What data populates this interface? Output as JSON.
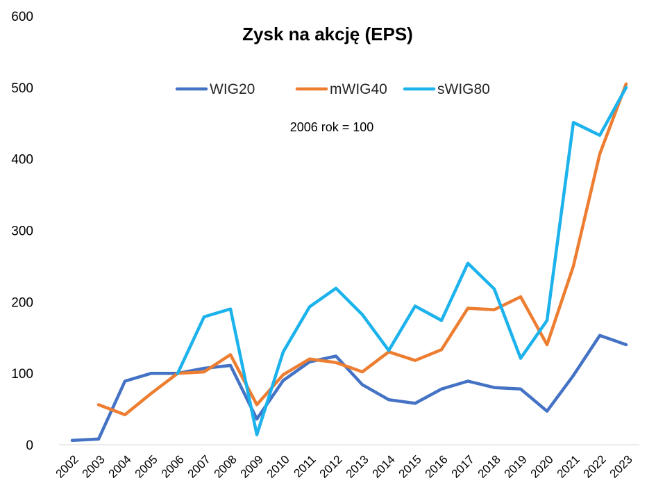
{
  "chart_data": {
    "type": "line",
    "title": "Zysk na akcję (EPS)",
    "subtitle": "2006 rok = 100",
    "xlabel": "",
    "ylabel": "",
    "ylim": [
      0,
      600
    ],
    "yticks": [
      0,
      100,
      200,
      300,
      400,
      500,
      600
    ],
    "grid": false,
    "legend_position": "top-center",
    "categories": [
      "2002",
      "2003",
      "2004",
      "2005",
      "2006",
      "2007",
      "2008",
      "2009",
      "2010",
      "2011",
      "2012",
      "2013",
      "2014",
      "2015",
      "2016",
      "2017",
      "2018",
      "2019",
      "2020",
      "2021",
      "2022",
      "2023"
    ],
    "series": [
      {
        "name": "WIG20",
        "color": "#4472C4",
        "values": [
          6,
          8,
          89,
          100,
          100,
          107,
          111,
          36,
          90,
          116,
          124,
          84,
          63,
          58,
          78,
          89,
          80,
          78,
          47,
          97,
          153,
          140
        ]
      },
      {
        "name": "mWIG40",
        "color": "#ED7D31",
        "values": [
          null,
          56,
          42,
          72,
          100,
          102,
          126,
          56,
          98,
          120,
          115,
          102,
          130,
          118,
          133,
          191,
          189,
          207,
          140,
          250,
          407,
          505
        ]
      },
      {
        "name": "sWIG80",
        "color": "#1CB2EC",
        "values": [
          null,
          null,
          null,
          null,
          100,
          179,
          190,
          14,
          130,
          193,
          219,
          182,
          132,
          194,
          174,
          254,
          218,
          121,
          174,
          451,
          433,
          500
        ]
      }
    ]
  }
}
